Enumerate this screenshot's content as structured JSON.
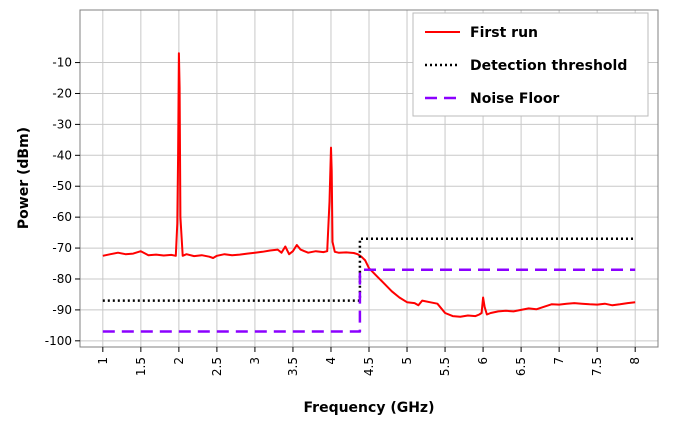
{
  "chart_data": {
    "type": "line",
    "xlabel": "Frequency (GHz)",
    "ylabel": "Power (dBm)",
    "xlim": [
      0.7,
      8.3
    ],
    "ylim": [
      -102,
      7
    ],
    "x_ticks": [
      1,
      1.5,
      2,
      2.5,
      3,
      3.5,
      4,
      4.5,
      5,
      5.5,
      6,
      6.5,
      7,
      7.5,
      8
    ],
    "y_ticks": [
      -100,
      -90,
      -80,
      -70,
      -60,
      -50,
      -40,
      -30,
      -20,
      -10
    ],
    "grid": true,
    "legend_position": "top-right",
    "series": [
      {
        "name": "First run",
        "color": "#ff0000",
        "style": "solid",
        "x": [
          1.0,
          1.1,
          1.2,
          1.3,
          1.4,
          1.5,
          1.6,
          1.7,
          1.8,
          1.9,
          1.96,
          1.98,
          1.99,
          2.0,
          2.01,
          2.02,
          2.05,
          2.1,
          2.2,
          2.3,
          2.4,
          2.45,
          2.5,
          2.6,
          2.7,
          2.8,
          2.9,
          3.0,
          3.1,
          3.2,
          3.3,
          3.35,
          3.4,
          3.45,
          3.5,
          3.55,
          3.6,
          3.65,
          3.7,
          3.8,
          3.9,
          3.95,
          3.98,
          4.0,
          4.01,
          4.02,
          4.05,
          4.1,
          4.2,
          4.3,
          4.35,
          4.4,
          4.45,
          4.5,
          4.6,
          4.7,
          4.8,
          4.9,
          5.0,
          5.1,
          5.15,
          5.2,
          5.3,
          5.4,
          5.5,
          5.6,
          5.7,
          5.8,
          5.9,
          5.95,
          5.98,
          6.0,
          6.02,
          6.05,
          6.1,
          6.2,
          6.3,
          6.4,
          6.5,
          6.6,
          6.7,
          6.8,
          6.9,
          7.0,
          7.1,
          7.2,
          7.3,
          7.4,
          7.5,
          7.6,
          7.7,
          7.8,
          7.9,
          8.0
        ],
        "y": [
          -72.5,
          -72.0,
          -71.5,
          -72.0,
          -71.8,
          -71.0,
          -72.3,
          -72.1,
          -72.4,
          -72.2,
          -72.5,
          -62.0,
          -40.0,
          -7.0,
          -18.0,
          -60.0,
          -72.5,
          -72.0,
          -72.6,
          -72.3,
          -72.8,
          -73.2,
          -72.5,
          -72.0,
          -72.3,
          -72.1,
          -71.8,
          -71.5,
          -71.2,
          -70.8,
          -70.5,
          -71.5,
          -69.5,
          -72.0,
          -71.0,
          -69.0,
          -70.5,
          -71.0,
          -71.5,
          -71.0,
          -71.3,
          -71.0,
          -55.0,
          -37.5,
          -45.0,
          -68.0,
          -71.2,
          -71.5,
          -71.4,
          -71.6,
          -72.0,
          -72.8,
          -74.0,
          -76.5,
          -79.0,
          -81.5,
          -84.0,
          -86.0,
          -87.5,
          -87.8,
          -88.5,
          -87.0,
          -87.5,
          -88.0,
          -91.0,
          -92.0,
          -92.2,
          -91.8,
          -92.0,
          -91.5,
          -91.0,
          -86.0,
          -89.0,
          -91.5,
          -91.0,
          -90.5,
          -90.3,
          -90.5,
          -90.0,
          -89.5,
          -89.8,
          -89.0,
          -88.2,
          -88.3,
          -88.0,
          -87.8,
          -88.0,
          -88.2,
          -88.3,
          -88.0,
          -88.5,
          -88.2,
          -87.8,
          -87.5
        ]
      },
      {
        "name": "Detection threshold",
        "color": "#000000",
        "style": "dotted",
        "x": [
          1.0,
          4.38,
          4.38,
          8.0
        ],
        "y": [
          -87.0,
          -87.0,
          -67.0,
          -67.0
        ]
      },
      {
        "name": "Noise Floor",
        "color": "#8b00ff",
        "style": "dashed",
        "x": [
          1.0,
          4.38,
          4.38,
          8.0
        ],
        "y": [
          -97.0,
          -97.0,
          -77.0,
          -77.0
        ]
      }
    ]
  }
}
